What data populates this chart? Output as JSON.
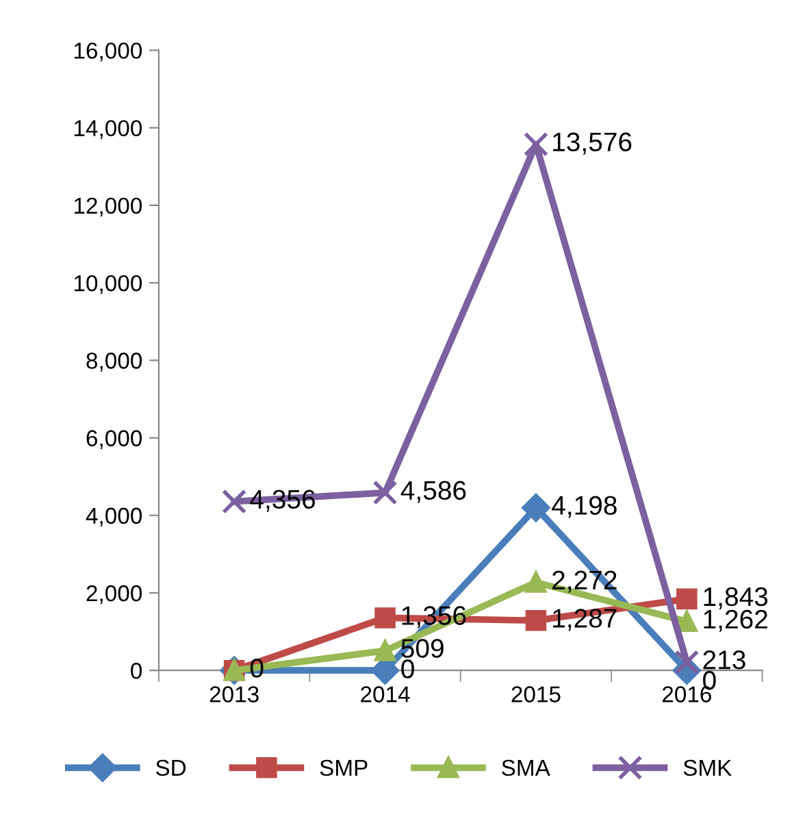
{
  "chart_data": {
    "type": "line",
    "categories": [
      "2013",
      "2014",
      "2015",
      "2016"
    ],
    "series": [
      {
        "name": "SD",
        "color": "#4a7ebb",
        "marker": "diamond",
        "values": [
          0,
          0,
          4198,
          0
        ],
        "value_labels": [
          "0",
          "0",
          "4,198",
          "0"
        ]
      },
      {
        "name": "SMP",
        "color": "#be4b48",
        "marker": "square",
        "values": [
          0,
          1356,
          1287,
          1843
        ],
        "value_labels": [
          null,
          "1,356",
          "1,287",
          "1,843"
        ]
      },
      {
        "name": "SMA",
        "color": "#98b954",
        "marker": "triangle",
        "values": [
          0,
          509,
          2272,
          1262
        ],
        "value_labels": [
          null,
          "509",
          "2,272",
          "1,262"
        ]
      },
      {
        "name": "SMK",
        "color": "#7d60a0",
        "marker": "cross",
        "values": [
          4356,
          4586,
          13576,
          213
        ],
        "value_labels": [
          "4,356",
          "4,586",
          "13,576",
          "213"
        ]
      }
    ],
    "ylim": [
      0,
      16000
    ],
    "yticks": [
      0,
      {
        "value": 2000,
        "label": "2,000"
      },
      {
        "value": 4000,
        "label": "4,000"
      },
      {
        "value": 6000,
        "label": "6,000"
      },
      {
        "value": 8000,
        "label": "8,000"
      },
      {
        "value": 10000,
        "label": "10,000"
      },
      {
        "value": 12000,
        "label": "12,000"
      },
      {
        "value": 14000,
        "label": "14,000"
      },
      {
        "value": 16000,
        "label": "16,000"
      }
    ],
    "grid": false,
    "legend": "bottom"
  }
}
